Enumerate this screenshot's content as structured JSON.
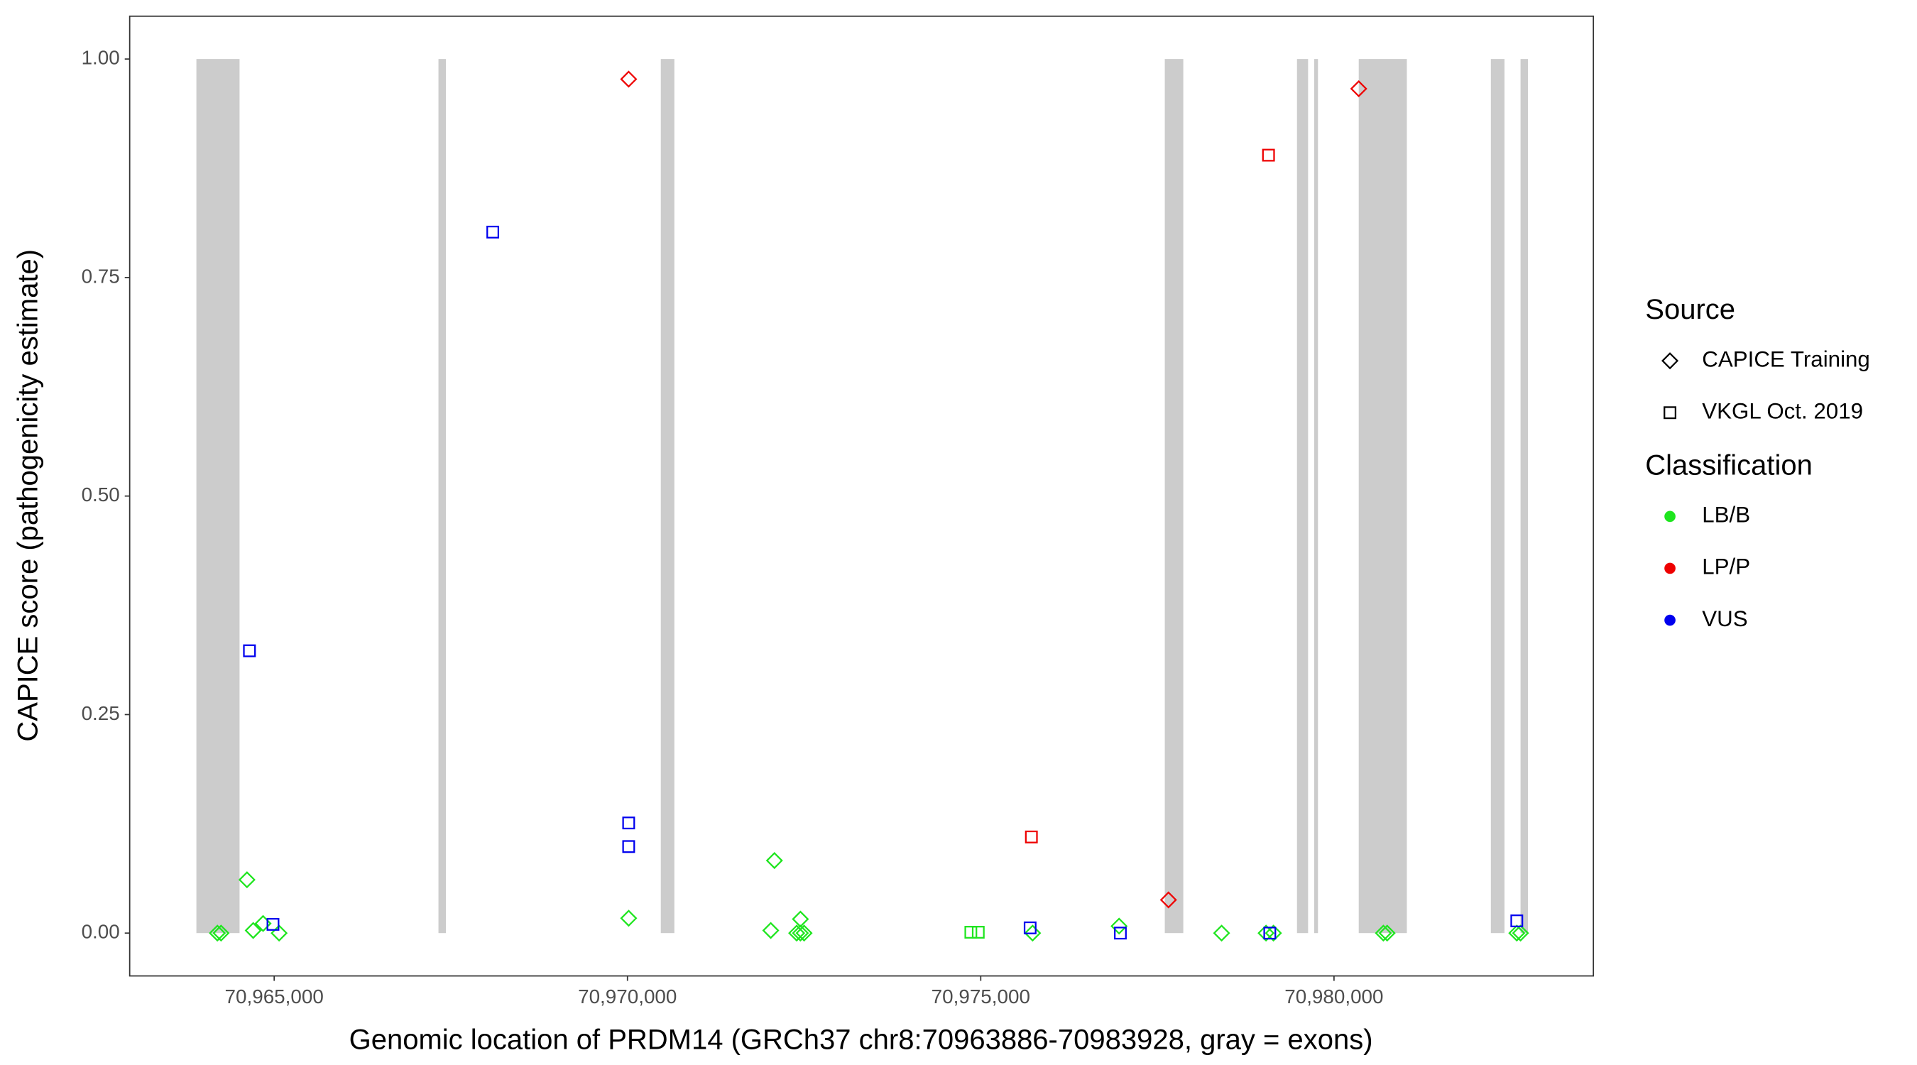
{
  "chart_data": {
    "type": "scatter",
    "x_label": "Genomic location of PRDM14 (GRCh37 chr8:70963886-70983928, gray = exons)",
    "y_label": "CAPICE score (pathogenicity estimate)",
    "xlim": [
      70962955,
      70983671
    ],
    "ylim": [
      -0.049,
      1.049
    ],
    "xticks": [
      {
        "value": 70965000,
        "label": "70,965,000"
      },
      {
        "value": 70970000,
        "label": "70,970,000"
      },
      {
        "value": 70975000,
        "label": "70,975,000"
      },
      {
        "value": 70980000,
        "label": "70,980,000"
      }
    ],
    "yticks": [
      {
        "value": 0,
        "label": "0.00"
      },
      {
        "value": 0.25,
        "label": "0.25"
      },
      {
        "value": 0.5,
        "label": "0.50"
      },
      {
        "value": 0.75,
        "label": "0.75"
      },
      {
        "value": 1,
        "label": "1.00"
      }
    ],
    "exon_color": "#cccccc",
    "exon_y": [
      0,
      1
    ],
    "exons": [
      [
        70963899,
        70964510
      ],
      [
        70967325,
        70967430
      ],
      [
        70970472,
        70970664
      ],
      [
        70977605,
        70977867
      ],
      [
        70979476,
        70979633
      ],
      [
        70979720,
        70979773
      ],
      [
        70980350,
        70981031
      ],
      [
        70982220,
        70982413
      ],
      [
        70982640,
        70982745
      ]
    ],
    "legends": [
      {
        "title": "Source",
        "entries": [
          {
            "label": "CAPICE Training",
            "shape": "diamond"
          },
          {
            "label": "VKGL Oct. 2019",
            "shape": "square"
          }
        ]
      },
      {
        "title": "Classification",
        "entries": [
          {
            "label": "LB/B",
            "color": "#1ee51e"
          },
          {
            "label": "LP/P",
            "color": "#ee0000"
          },
          {
            "label": "VUS",
            "color": "#0000ee"
          }
        ]
      }
    ],
    "series": [
      {
        "shape": "diamond",
        "color": "#1ee51e",
        "x": [
          70964196,
          70964248,
          70964615,
          70964703,
          70964843,
          70965070,
          70970017,
          70972028,
          70972080,
          70972448,
          70972395,
          70972448,
          70972500,
          70975734,
          70976958,
          70978409,
          70979038,
          70979143,
          70980699,
          70980752,
          70982587,
          70982640
        ],
        "values": [
          0,
          0,
          0.061,
          0.003,
          0.011,
          0,
          0.017,
          0.003,
          0.083,
          0.016,
          0,
          0,
          0,
          0,
          0.008,
          0,
          0,
          0,
          0,
          0,
          0,
          0
        ]
      },
      {
        "shape": "diamond",
        "color": "#ee0000",
        "x": [
          70970017,
          70977657,
          70980350
        ],
        "values": [
          0.977,
          0.038,
          0.966
        ]
      },
      {
        "shape": "square",
        "color": "#1ee51e",
        "x": [
          70974860,
          70974965
        ],
        "values": [
          0.001,
          0.001
        ]
      },
      {
        "shape": "square",
        "color": "#ee0000",
        "x": [
          70979073,
          70975717
        ],
        "values": [
          0.89,
          0.11
        ]
      },
      {
        "shape": "square",
        "color": "#0000ee",
        "x": [
          70964650,
          70964983,
          70968094,
          70970017,
          70970017,
          70975699,
          70976976,
          70979091,
          70982587
        ],
        "values": [
          0.323,
          0.01,
          0.802,
          0.126,
          0.099,
          0.006,
          0,
          0,
          0.014
        ]
      }
    ]
  }
}
